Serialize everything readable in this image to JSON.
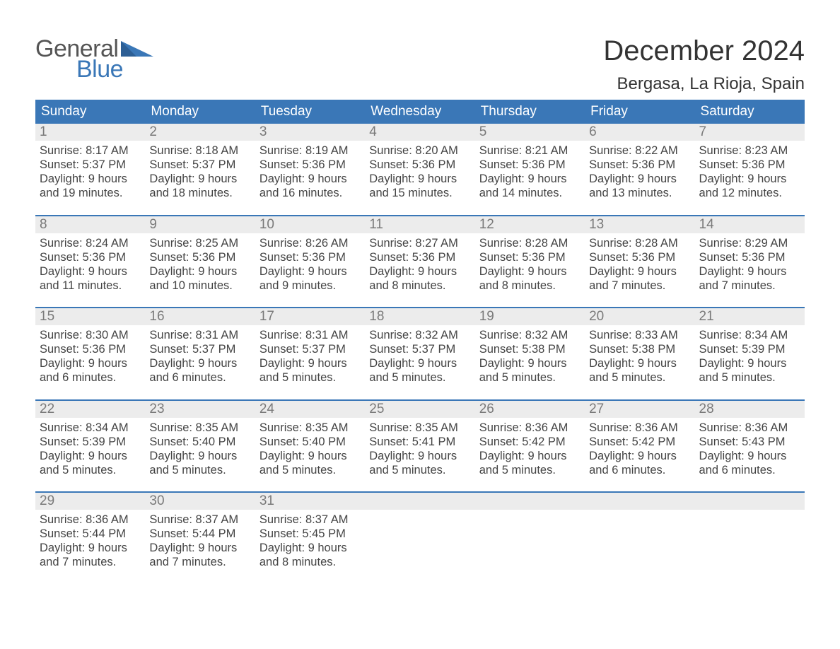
{
  "logo": {
    "word1": "General",
    "word2": "Blue"
  },
  "title": "December 2024",
  "location": "Bergasa, La Rioja, Spain",
  "colors": {
    "header_blue": "#3a77b7",
    "daynum_bg": "#ececec",
    "daynum_text": "#7a7a7a",
    "body_text": "#444444",
    "logo_gray": "#555555"
  },
  "weekdays": [
    "Sunday",
    "Monday",
    "Tuesday",
    "Wednesday",
    "Thursday",
    "Friday",
    "Saturday"
  ],
  "weeks": [
    [
      {
        "n": "1",
        "sr": "Sunrise: 8:17 AM",
        "ss": "Sunset: 5:37 PM",
        "d1": "Daylight: 9 hours",
        "d2": "and 19 minutes."
      },
      {
        "n": "2",
        "sr": "Sunrise: 8:18 AM",
        "ss": "Sunset: 5:37 PM",
        "d1": "Daylight: 9 hours",
        "d2": "and 18 minutes."
      },
      {
        "n": "3",
        "sr": "Sunrise: 8:19 AM",
        "ss": "Sunset: 5:36 PM",
        "d1": "Daylight: 9 hours",
        "d2": "and 16 minutes."
      },
      {
        "n": "4",
        "sr": "Sunrise: 8:20 AM",
        "ss": "Sunset: 5:36 PM",
        "d1": "Daylight: 9 hours",
        "d2": "and 15 minutes."
      },
      {
        "n": "5",
        "sr": "Sunrise: 8:21 AM",
        "ss": "Sunset: 5:36 PM",
        "d1": "Daylight: 9 hours",
        "d2": "and 14 minutes."
      },
      {
        "n": "6",
        "sr": "Sunrise: 8:22 AM",
        "ss": "Sunset: 5:36 PM",
        "d1": "Daylight: 9 hours",
        "d2": "and 13 minutes."
      },
      {
        "n": "7",
        "sr": "Sunrise: 8:23 AM",
        "ss": "Sunset: 5:36 PM",
        "d1": "Daylight: 9 hours",
        "d2": "and 12 minutes."
      }
    ],
    [
      {
        "n": "8",
        "sr": "Sunrise: 8:24 AM",
        "ss": "Sunset: 5:36 PM",
        "d1": "Daylight: 9 hours",
        "d2": "and 11 minutes."
      },
      {
        "n": "9",
        "sr": "Sunrise: 8:25 AM",
        "ss": "Sunset: 5:36 PM",
        "d1": "Daylight: 9 hours",
        "d2": "and 10 minutes."
      },
      {
        "n": "10",
        "sr": "Sunrise: 8:26 AM",
        "ss": "Sunset: 5:36 PM",
        "d1": "Daylight: 9 hours",
        "d2": "and 9 minutes."
      },
      {
        "n": "11",
        "sr": "Sunrise: 8:27 AM",
        "ss": "Sunset: 5:36 PM",
        "d1": "Daylight: 9 hours",
        "d2": "and 8 minutes."
      },
      {
        "n": "12",
        "sr": "Sunrise: 8:28 AM",
        "ss": "Sunset: 5:36 PM",
        "d1": "Daylight: 9 hours",
        "d2": "and 8 minutes."
      },
      {
        "n": "13",
        "sr": "Sunrise: 8:28 AM",
        "ss": "Sunset: 5:36 PM",
        "d1": "Daylight: 9 hours",
        "d2": "and 7 minutes."
      },
      {
        "n": "14",
        "sr": "Sunrise: 8:29 AM",
        "ss": "Sunset: 5:36 PM",
        "d1": "Daylight: 9 hours",
        "d2": "and 7 minutes."
      }
    ],
    [
      {
        "n": "15",
        "sr": "Sunrise: 8:30 AM",
        "ss": "Sunset: 5:36 PM",
        "d1": "Daylight: 9 hours",
        "d2": "and 6 minutes."
      },
      {
        "n": "16",
        "sr": "Sunrise: 8:31 AM",
        "ss": "Sunset: 5:37 PM",
        "d1": "Daylight: 9 hours",
        "d2": "and 6 minutes."
      },
      {
        "n": "17",
        "sr": "Sunrise: 8:31 AM",
        "ss": "Sunset: 5:37 PM",
        "d1": "Daylight: 9 hours",
        "d2": "and 5 minutes."
      },
      {
        "n": "18",
        "sr": "Sunrise: 8:32 AM",
        "ss": "Sunset: 5:37 PM",
        "d1": "Daylight: 9 hours",
        "d2": "and 5 minutes."
      },
      {
        "n": "19",
        "sr": "Sunrise: 8:32 AM",
        "ss": "Sunset: 5:38 PM",
        "d1": "Daylight: 9 hours",
        "d2": "and 5 minutes."
      },
      {
        "n": "20",
        "sr": "Sunrise: 8:33 AM",
        "ss": "Sunset: 5:38 PM",
        "d1": "Daylight: 9 hours",
        "d2": "and 5 minutes."
      },
      {
        "n": "21",
        "sr": "Sunrise: 8:34 AM",
        "ss": "Sunset: 5:39 PM",
        "d1": "Daylight: 9 hours",
        "d2": "and 5 minutes."
      }
    ],
    [
      {
        "n": "22",
        "sr": "Sunrise: 8:34 AM",
        "ss": "Sunset: 5:39 PM",
        "d1": "Daylight: 9 hours",
        "d2": "and 5 minutes."
      },
      {
        "n": "23",
        "sr": "Sunrise: 8:35 AM",
        "ss": "Sunset: 5:40 PM",
        "d1": "Daylight: 9 hours",
        "d2": "and 5 minutes."
      },
      {
        "n": "24",
        "sr": "Sunrise: 8:35 AM",
        "ss": "Sunset: 5:40 PM",
        "d1": "Daylight: 9 hours",
        "d2": "and 5 minutes."
      },
      {
        "n": "25",
        "sr": "Sunrise: 8:35 AM",
        "ss": "Sunset: 5:41 PM",
        "d1": "Daylight: 9 hours",
        "d2": "and 5 minutes."
      },
      {
        "n": "26",
        "sr": "Sunrise: 8:36 AM",
        "ss": "Sunset: 5:42 PM",
        "d1": "Daylight: 9 hours",
        "d2": "and 5 minutes."
      },
      {
        "n": "27",
        "sr": "Sunrise: 8:36 AM",
        "ss": "Sunset: 5:42 PM",
        "d1": "Daylight: 9 hours",
        "d2": "and 6 minutes."
      },
      {
        "n": "28",
        "sr": "Sunrise: 8:36 AM",
        "ss": "Sunset: 5:43 PM",
        "d1": "Daylight: 9 hours",
        "d2": "and 6 minutes."
      }
    ],
    [
      {
        "n": "29",
        "sr": "Sunrise: 8:36 AM",
        "ss": "Sunset: 5:44 PM",
        "d1": "Daylight: 9 hours",
        "d2": "and 7 minutes."
      },
      {
        "n": "30",
        "sr": "Sunrise: 8:37 AM",
        "ss": "Sunset: 5:44 PM",
        "d1": "Daylight: 9 hours",
        "d2": "and 7 minutes."
      },
      {
        "n": "31",
        "sr": "Sunrise: 8:37 AM",
        "ss": "Sunset: 5:45 PM",
        "d1": "Daylight: 9 hours",
        "d2": "and 8 minutes."
      },
      {
        "n": "",
        "sr": "",
        "ss": "",
        "d1": "",
        "d2": ""
      },
      {
        "n": "",
        "sr": "",
        "ss": "",
        "d1": "",
        "d2": ""
      },
      {
        "n": "",
        "sr": "",
        "ss": "",
        "d1": "",
        "d2": ""
      },
      {
        "n": "",
        "sr": "",
        "ss": "",
        "d1": "",
        "d2": ""
      }
    ]
  ]
}
